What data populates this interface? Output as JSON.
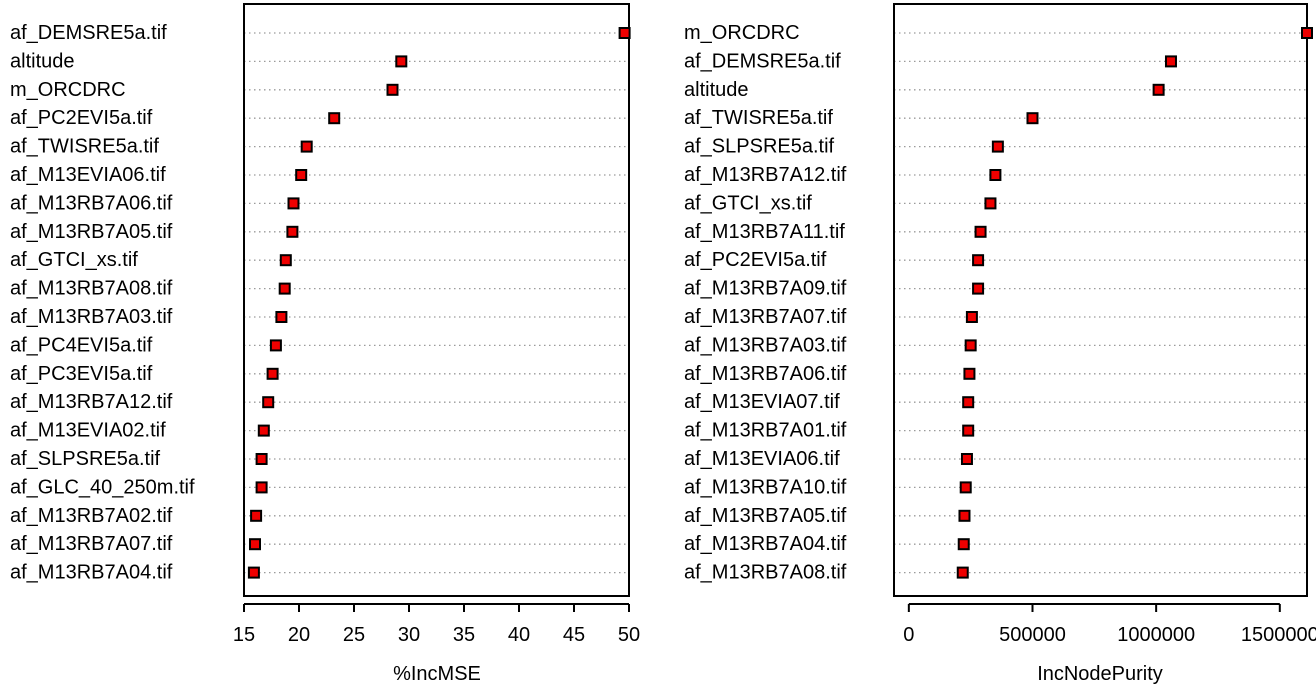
{
  "chart_data": [
    {
      "type": "dotplot",
      "xlabel": "%IncMSE",
      "xlim": [
        15,
        50
      ],
      "ticks": [
        15,
        20,
        25,
        30,
        35,
        40,
        45,
        50
      ],
      "tick_labels": [
        "15",
        "20",
        "25",
        "30",
        "35",
        "40",
        "45",
        "50"
      ],
      "grid": "dotted horizontal guide lines per variable",
      "point_color": "#ee0000",
      "categories": [
        "af_DEMSRE5a.tif",
        "altitude",
        "m_ORCDRC",
        "af_PC2EVI5a.tif",
        "af_TWISRE5a.tif",
        "af_M13EVIA06.tif",
        "af_M13RB7A06.tif",
        "af_M13RB7A05.tif",
        "af_GTCI_xs.tif",
        "af_M13RB7A08.tif",
        "af_M13RB7A03.tif",
        "af_PC4EVI5a.tif",
        "af_PC3EVI5a.tif",
        "af_M13RB7A12.tif",
        "af_M13EVIA02.tif",
        "af_SLPSRE5a.tif",
        "af_GLC_40_250m.tif",
        "af_M13RB7A02.tif",
        "af_M13RB7A07.tif",
        "af_M13RB7A04.tif"
      ],
      "values": [
        49.6,
        29.3,
        28.5,
        23.2,
        20.7,
        20.2,
        19.5,
        19.4,
        18.8,
        18.7,
        18.4,
        17.9,
        17.6,
        17.2,
        16.8,
        16.6,
        16.6,
        16.1,
        16.0,
        15.9
      ]
    },
    {
      "type": "dotplot",
      "xlabel": "IncNodePurity",
      "xlim": [
        -60000,
        1610000
      ],
      "ticks": [
        0,
        500000,
        1000000,
        1500000
      ],
      "tick_labels": [
        "0",
        "500000",
        "1000000",
        "1500000"
      ],
      "grid": "dotted horizontal guide lines per variable",
      "point_color": "#ee0000",
      "categories": [
        "m_ORCDRC",
        "af_DEMSRE5a.tif",
        "altitude",
        "af_TWISRE5a.tif",
        "af_SLPSRE5a.tif",
        "af_M13RB7A12.tif",
        "af_GTCI_xs.tif",
        "af_M13RB7A11.tif",
        "af_PC2EVI5a.tif",
        "af_M13RB7A09.tif",
        "af_M13RB7A07.tif",
        "af_M13RB7A03.tif",
        "af_M13RB7A06.tif",
        "af_M13EVIA07.tif",
        "af_M13RB7A01.tif",
        "af_M13EVIA06.tif",
        "af_M13RB7A10.tif",
        "af_M13RB7A05.tif",
        "af_M13RB7A04.tif",
        "af_M13RB7A08.tif"
      ],
      "values": [
        1610000,
        1060000,
        1010000,
        500000,
        360000,
        350000,
        330000,
        290000,
        280000,
        280000,
        255000,
        250000,
        245000,
        240000,
        240000,
        235000,
        230000,
        225000,
        222000,
        218000
      ]
    }
  ]
}
